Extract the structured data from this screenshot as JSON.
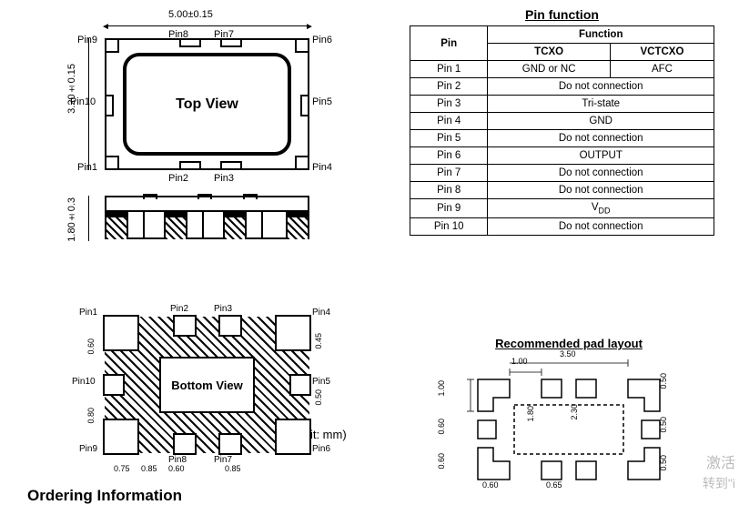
{
  "dims": {
    "width": "5.00±0.15",
    "height": "3.20±0.15",
    "thick": "1.80±0.3"
  },
  "topview_label": "Top View",
  "bottomview_label": "Bottom View",
  "unit_text": "(Unit: mm)",
  "pins_tv": {
    "p1": "Pin1",
    "p2": "Pin2",
    "p3": "Pin3",
    "p4": "Pin4",
    "p5": "Pin5",
    "p6": "Pin6",
    "p7": "Pin7",
    "p8": "Pin8",
    "p9": "Pin9",
    "p10": "Pin10"
  },
  "pins_bv": {
    "p1": "Pin1",
    "p2": "Pin2",
    "p3": "Pin3",
    "p4": "Pin4",
    "p5": "Pin5",
    "p6": "Pin6",
    "p7": "Pin7",
    "p8": "Pin8",
    "p9": "Pin9",
    "p10": "Pin10"
  },
  "bv_dims": {
    "d1": "0.60",
    "d2": "0.80",
    "d3": "0.75",
    "d4": "0.85",
    "d5": "0.60",
    "d6": "0.85",
    "d7": "0.45",
    "d8": "0.50"
  },
  "pin_table": {
    "title": "Pin function",
    "hdr_pin": "Pin",
    "hdr_func": "Function",
    "hdr_tcxo": "TCXO",
    "hdr_vctcxo": "VCTCXO",
    "rows": [
      {
        "pin": "Pin 1",
        "t": "GND or NC",
        "v": "AFC",
        "span": false
      },
      {
        "pin": "Pin 2",
        "m": "Do not connection",
        "span": true
      },
      {
        "pin": "Pin 3",
        "m": "Tri-state",
        "span": true
      },
      {
        "pin": "Pin 4",
        "m": "GND",
        "span": true
      },
      {
        "pin": "Pin 5",
        "m": "Do not connection",
        "span": true
      },
      {
        "pin": "Pin 6",
        "m": "OUTPUT",
        "span": true
      },
      {
        "pin": "Pin 7",
        "m": "Do not connection",
        "span": true
      },
      {
        "pin": "Pin 8",
        "m": "Do not connection",
        "span": true
      },
      {
        "pin": "Pin 9",
        "m": "V",
        "sub": "DD",
        "span": true,
        "vdd": true
      },
      {
        "pin": "Pin 10",
        "m": "Do not connection",
        "span": true
      }
    ]
  },
  "pad_layout": {
    "title": "Recommended pad layout",
    "d_top_gap": "1.00",
    "d_top_span": "3.50",
    "d_left_h": "1.00",
    "d_left_pad": "0.60",
    "d_left_g": "0.60",
    "d_bot1": "0.60",
    "d_bot2": "0.65",
    "d_mid_h": "1.80",
    "d_mid_gap": "2.30",
    "d_right1": "0.50",
    "d_right2": "0.50",
    "d_right3": "0.50"
  },
  "ordering_title": "Ordering Information",
  "watermark1": "激活",
  "watermark2": "转到\"i"
}
